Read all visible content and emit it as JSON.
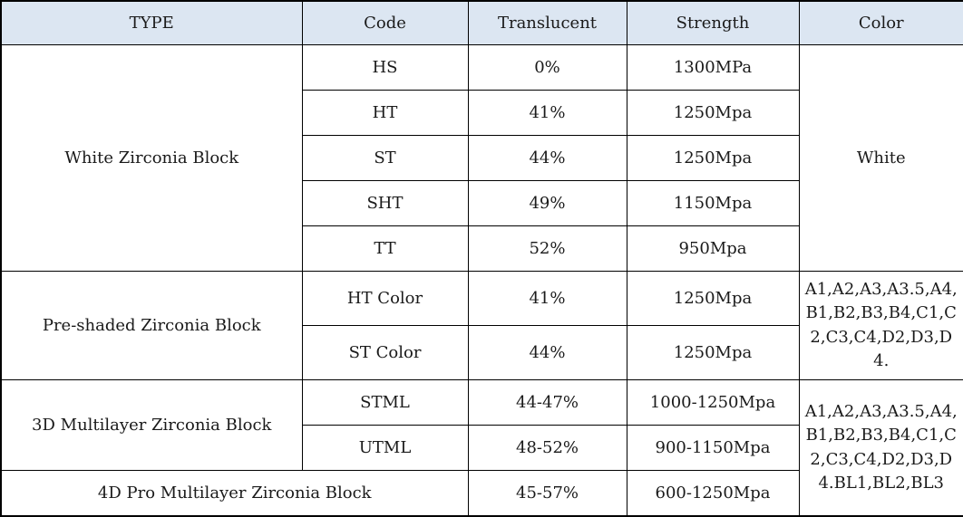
{
  "table": {
    "header": {
      "type": "TYPE",
      "code": "Code",
      "translucent": "Translucent",
      "strength": "Strength",
      "color": "Color"
    },
    "groups": [
      {
        "type": "White Zirconia Block",
        "color": "White",
        "rows": [
          {
            "code": "HS",
            "translucent": "0%",
            "strength": "1300MPa"
          },
          {
            "code": "HT",
            "translucent": "41%",
            "strength": "1250Mpa"
          },
          {
            "code": "ST",
            "translucent": "44%",
            "strength": "1250Mpa"
          },
          {
            "code": "SHT",
            "translucent": "49%",
            "strength": "1150Mpa"
          },
          {
            "code": "TT",
            "translucent": "52%",
            "strength": "950Mpa"
          }
        ]
      },
      {
        "type": "Pre-shaded Zirconia Block",
        "color": "A1,A2,A3,A3.5,A4,B1,B2,B3,B4,C1,C2,C3,C4,D2,D3,D4.",
        "rows": [
          {
            "code": "HT Color",
            "translucent": "41%",
            "strength": "1250Mpa"
          },
          {
            "code": "ST Color",
            "translucent": "44%",
            "strength": "1250Mpa"
          }
        ]
      },
      {
        "type": "3D Multilayer Zirconia Block",
        "rows": [
          {
            "code": "STML",
            "translucent": "44-47%",
            "strength": "1000-1250Mpa"
          },
          {
            "code": "UTML",
            "translucent": "48-52%",
            "strength": "900-1150Mpa"
          }
        ]
      },
      {
        "type": "4D Pro Multilayer Zirconia Block",
        "row": {
          "translucent": "45-57%",
          "strength": "600-1250Mpa"
        }
      }
    ],
    "shared_color_multilayer": "A1,A2,A3,A3.5,A4,B1,B2,B3,B4,C1,C2,C3,C4,D2,D3,D4.BL1,BL2,BL3"
  }
}
